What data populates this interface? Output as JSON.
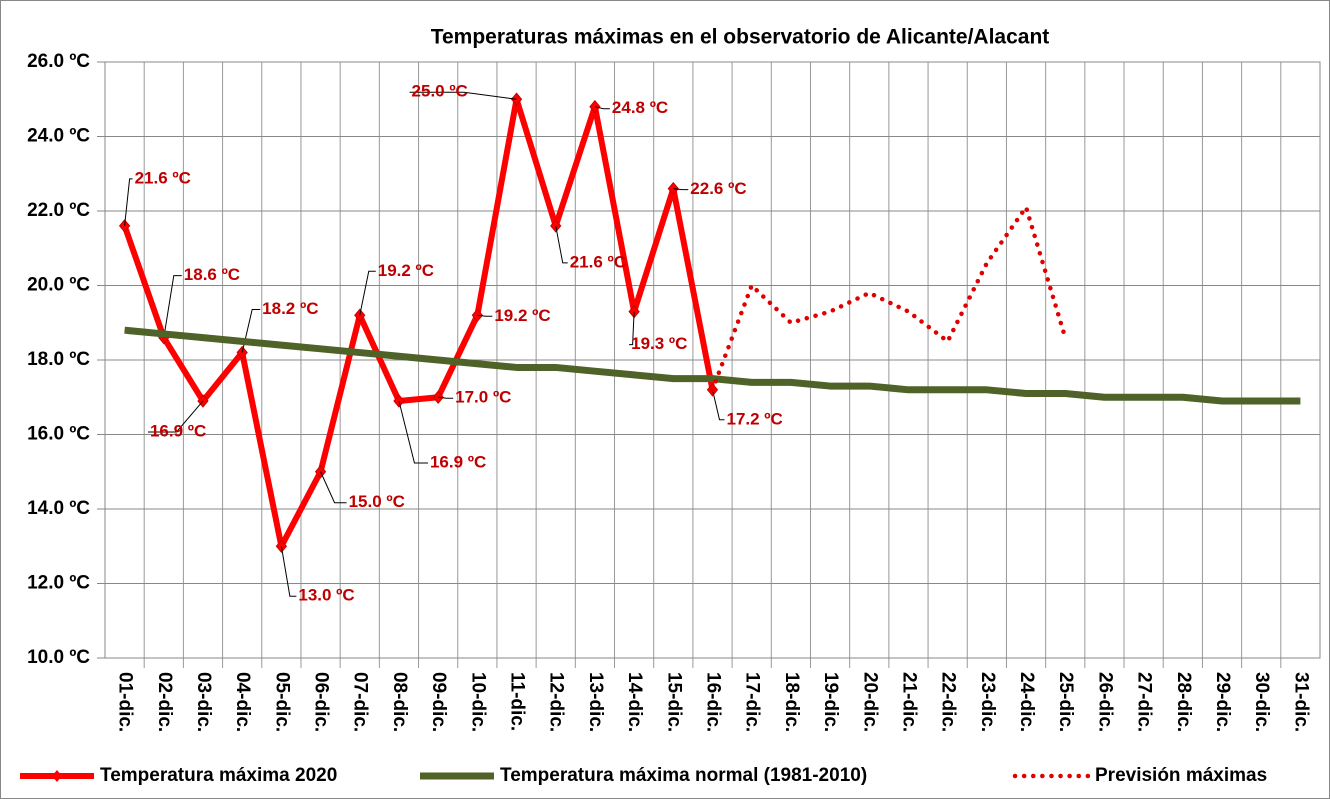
{
  "chart_data": {
    "type": "line",
    "title": "Temperaturas máximas en el observatorio de Alicante/Alacant",
    "categories": [
      "01-dic.",
      "02-dic.",
      "03-dic.",
      "04-dic.",
      "05-dic.",
      "06-dic.",
      "07-dic.",
      "08-dic.",
      "09-dic.",
      "10-dic.",
      "11-dic.",
      "12-dic.",
      "13-dic.",
      "14-dic.",
      "15-dic.",
      "16-dic.",
      "17-dic.",
      "18-dic.",
      "19-dic.",
      "20-dic.",
      "21-dic.",
      "22-dic.",
      "23-dic.",
      "24-dic.",
      "25-dic.",
      "26-dic.",
      "27-dic.",
      "28-dic.",
      "29-dic.",
      "30-dic.",
      "31-dic."
    ],
    "series": [
      {
        "name": "Temperatura máxima 2020",
        "color": "#ff0000",
        "style": "solid-marker",
        "values": [
          21.6,
          18.6,
          16.9,
          18.2,
          13.0,
          15.0,
          19.2,
          16.9,
          17.0,
          19.2,
          25.0,
          21.6,
          24.8,
          19.3,
          22.6,
          17.2,
          null,
          null,
          null,
          null,
          null,
          null,
          null,
          null,
          null,
          null,
          null,
          null,
          null,
          null,
          null
        ],
        "value_labels": [
          "21.6 ºC",
          "18.6 ºC",
          "16.9 ºC",
          "18.2 ºC",
          "13.0 ºC",
          "15.0 ºC",
          "19.2 ºC",
          "16.9 ºC",
          "17.0 ºC",
          "19.2 ºC",
          "25.0 ºC",
          "21.6 ºC",
          "24.8 ºC",
          "19.3 ºC",
          "22.6 ºC",
          "17.2 ºC",
          null,
          null,
          null,
          null,
          null,
          null,
          null,
          null,
          null,
          null,
          null,
          null,
          null,
          null,
          null
        ]
      },
      {
        "name": "Temperatura máxima normal (1981-2010)",
        "color": "#4f6228",
        "style": "thick",
        "values": [
          18.8,
          18.7,
          18.6,
          18.5,
          18.4,
          18.3,
          18.2,
          18.1,
          18.0,
          17.9,
          17.8,
          17.8,
          17.7,
          17.6,
          17.5,
          17.5,
          17.4,
          17.4,
          17.3,
          17.3,
          17.2,
          17.2,
          17.2,
          17.1,
          17.1,
          17.0,
          17.0,
          17.0,
          16.9,
          16.9,
          16.9
        ]
      },
      {
        "name": "Previsión máximas",
        "color": "#e00000",
        "style": "dotted",
        "values": [
          null,
          null,
          null,
          null,
          null,
          null,
          null,
          null,
          null,
          null,
          null,
          null,
          null,
          null,
          null,
          17.2,
          20.0,
          19.0,
          19.3,
          19.8,
          19.3,
          18.5,
          20.6,
          22.1,
          18.6,
          null,
          null,
          null,
          null,
          null,
          null
        ]
      }
    ],
    "ylim": [
      10,
      26
    ],
    "yticks": [
      {
        "value": 10,
        "label": "10.0 ºC"
      },
      {
        "value": 12,
        "label": "12.0 ºC"
      },
      {
        "value": 14,
        "label": "14.0 ºC"
      },
      {
        "value": 16,
        "label": "16.0 ºC"
      },
      {
        "value": 18,
        "label": "18.0 ºC"
      },
      {
        "value": 20,
        "label": "20.0 ºC"
      },
      {
        "value": 22,
        "label": "22.0 ºC"
      },
      {
        "value": 24,
        "label": "24.0 ºC"
      },
      {
        "value": 26,
        "label": "26.0 ºC"
      }
    ],
    "grid": true,
    "legend": "bottom"
  }
}
